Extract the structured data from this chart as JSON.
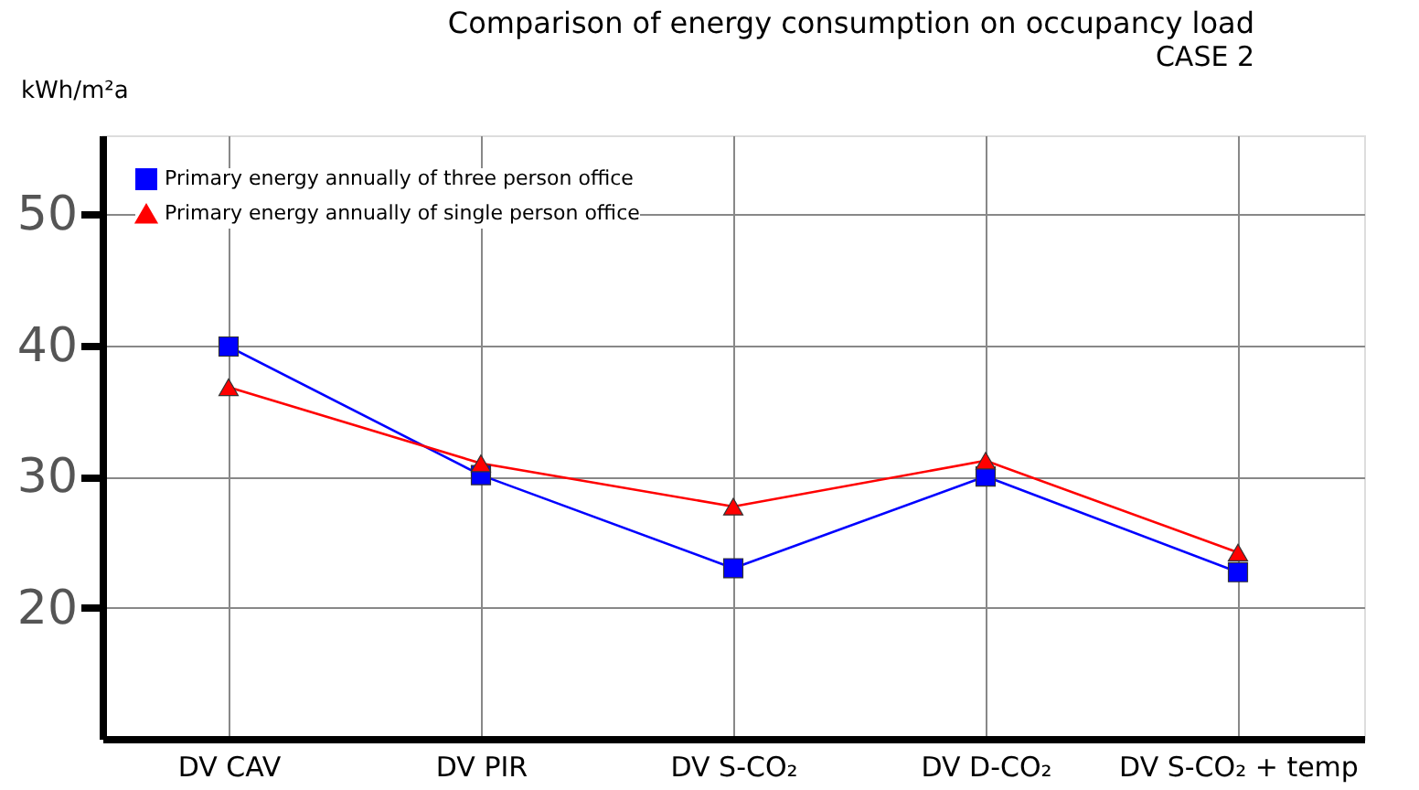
{
  "chart_data": {
    "type": "line",
    "title": "Comparison of energy consumption on occupancy load",
    "subtitle": "CASE 2",
    "ylabel": "kWh/m²a",
    "categories": [
      "DV CAV",
      "DV PIR",
      "DV S-CO₂",
      "DV D-CO₂",
      "DV S-CO₂ + temp"
    ],
    "series": [
      {
        "name": "Primary energy annually of three person office",
        "color": "#0000ff",
        "marker": "square",
        "values": [
          39.9,
          30.1,
          23.0,
          30.0,
          22.7
        ]
      },
      {
        "name": "Primary energy annually of single person office",
        "color": "#ff0000",
        "marker": "triangle",
        "values": [
          36.8,
          31.0,
          27.7,
          31.2,
          24.2
        ]
      }
    ],
    "ylim": [
      10,
      56
    ],
    "yticks": [
      20,
      30,
      40,
      50
    ],
    "grid": true,
    "legend": "top left"
  }
}
